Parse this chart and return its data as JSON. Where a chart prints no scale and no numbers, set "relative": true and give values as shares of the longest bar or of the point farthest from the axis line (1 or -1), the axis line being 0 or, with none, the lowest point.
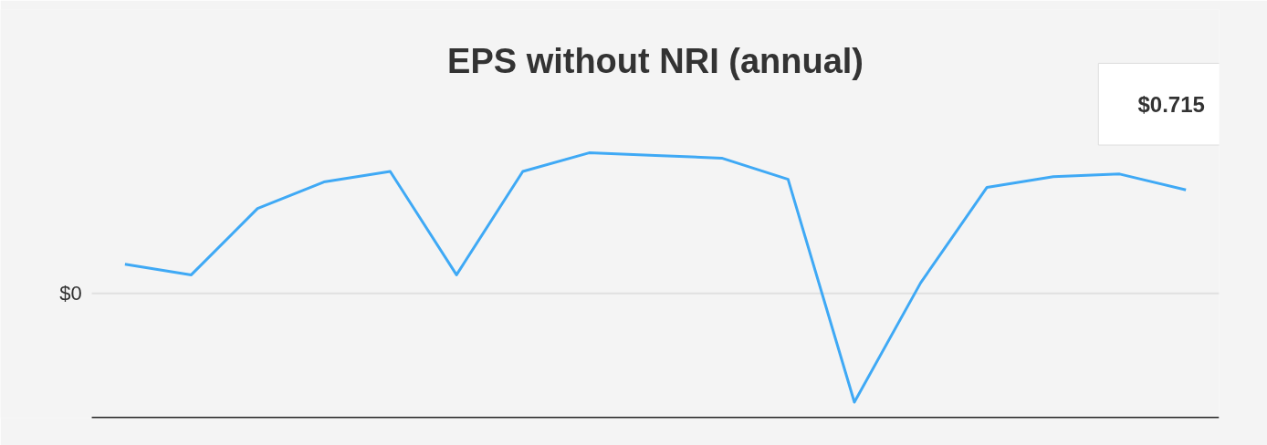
{
  "chart_data": {
    "type": "line",
    "title": "EPS without NRI (annual)",
    "categories": [
      null,
      null,
      null,
      null,
      null,
      null,
      null,
      null,
      null,
      null,
      null,
      null,
      null,
      null,
      null,
      null,
      null
    ],
    "values": [
      0.58,
      0.54,
      0.79,
      0.89,
      0.93,
      0.54,
      0.93,
      1,
      0.99,
      0.98,
      0.9,
      0.06,
      0.51,
      0.87,
      0.91,
      0.92,
      0.86
    ],
    "color": "#3fa9f5",
    "relative": true,
    "ref_lines": [
      {
        "axis": "y",
        "value": 0.47,
        "label": "$0",
        "color": "#e0e0e0"
      }
    ],
    "annotations": [
      "$0.715"
    ]
  }
}
